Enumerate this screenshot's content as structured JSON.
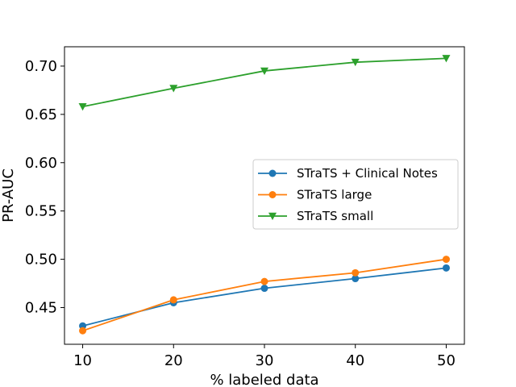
{
  "chart_data": {
    "type": "line",
    "title": "",
    "xlabel": "% labeled data",
    "ylabel": "PR-AUC",
    "x": [
      10,
      20,
      30,
      40,
      50
    ],
    "xlim": [
      8,
      52
    ],
    "ylim": [
      0.412,
      0.72
    ],
    "xticks": [
      10,
      20,
      30,
      40,
      50
    ],
    "yticks": [
      0.45,
      0.5,
      0.55,
      0.6,
      0.65,
      0.7
    ],
    "grid": false,
    "legend_position": "center-right",
    "series": [
      {
        "name": "STraTS + Clinical Notes",
        "color": "#1f77b4",
        "marker": "circle",
        "values": [
          0.431,
          0.455,
          0.47,
          0.48,
          0.491
        ]
      },
      {
        "name": "STraTS large",
        "color": "#ff7f0e",
        "marker": "circle",
        "values": [
          0.426,
          0.458,
          0.477,
          0.486,
          0.5
        ]
      },
      {
        "name": "STraTS small",
        "color": "#2ca02c",
        "marker": "triangle-down",
        "values": [
          0.658,
          0.677,
          0.695,
          0.704,
          0.708
        ]
      }
    ]
  }
}
